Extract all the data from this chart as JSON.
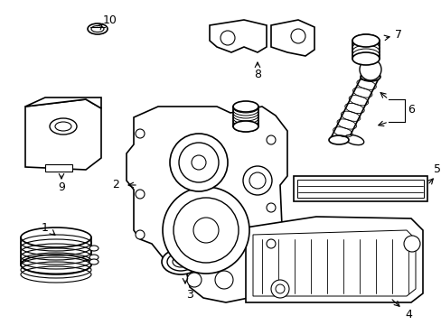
{
  "background_color": "#ffffff",
  "line_color": "#000000",
  "line_width": 1.0,
  "figsize": [
    4.89,
    3.6
  ],
  "dpi": 100
}
